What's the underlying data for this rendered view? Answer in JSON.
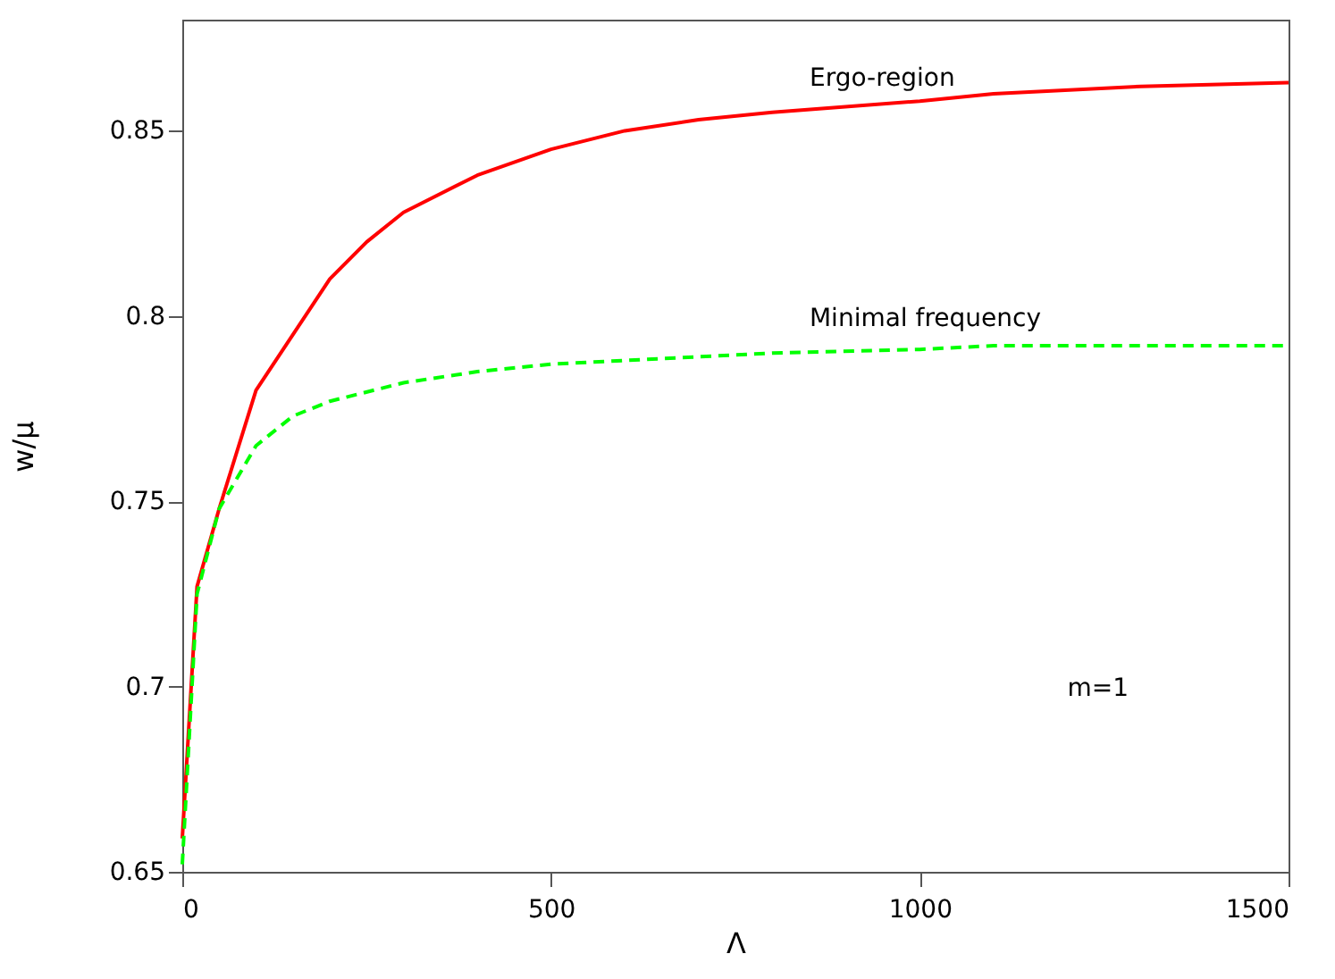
{
  "chart_data": {
    "type": "line",
    "xlabel": "Λ",
    "ylabel": "w/μ",
    "xlim": [
      0,
      1500
    ],
    "ylim": [
      0.65,
      0.88
    ],
    "xticks": [
      0,
      500,
      1000,
      1500
    ],
    "yticks": [
      0.65,
      0.7,
      0.75,
      0.8,
      0.85
    ],
    "grid": false,
    "annotations": [
      "m=1"
    ],
    "series": [
      {
        "name": "Ergo-region",
        "color": "#ff0000",
        "line_style": "solid",
        "x": [
          0,
          20,
          50,
          100,
          200,
          250,
          300,
          400,
          500,
          600,
          700,
          800,
          1000,
          1100,
          1300,
          1500
        ],
        "values": [
          0.659,
          0.727,
          0.748,
          0.78,
          0.81,
          0.82,
          0.828,
          0.838,
          0.845,
          0.85,
          0.853,
          0.855,
          0.858,
          0.86,
          0.862,
          0.863
        ]
      },
      {
        "name": "Minimal frequency",
        "color": "#00ff00",
        "line_style": "dashed",
        "x": [
          0,
          20,
          50,
          100,
          150,
          200,
          300,
          400,
          500,
          700,
          800,
          1000,
          1100,
          1500
        ],
        "values": [
          0.652,
          0.725,
          0.748,
          0.765,
          0.773,
          0.777,
          0.782,
          0.785,
          0.787,
          0.789,
          0.79,
          0.791,
          0.792,
          0.792
        ]
      }
    ]
  }
}
